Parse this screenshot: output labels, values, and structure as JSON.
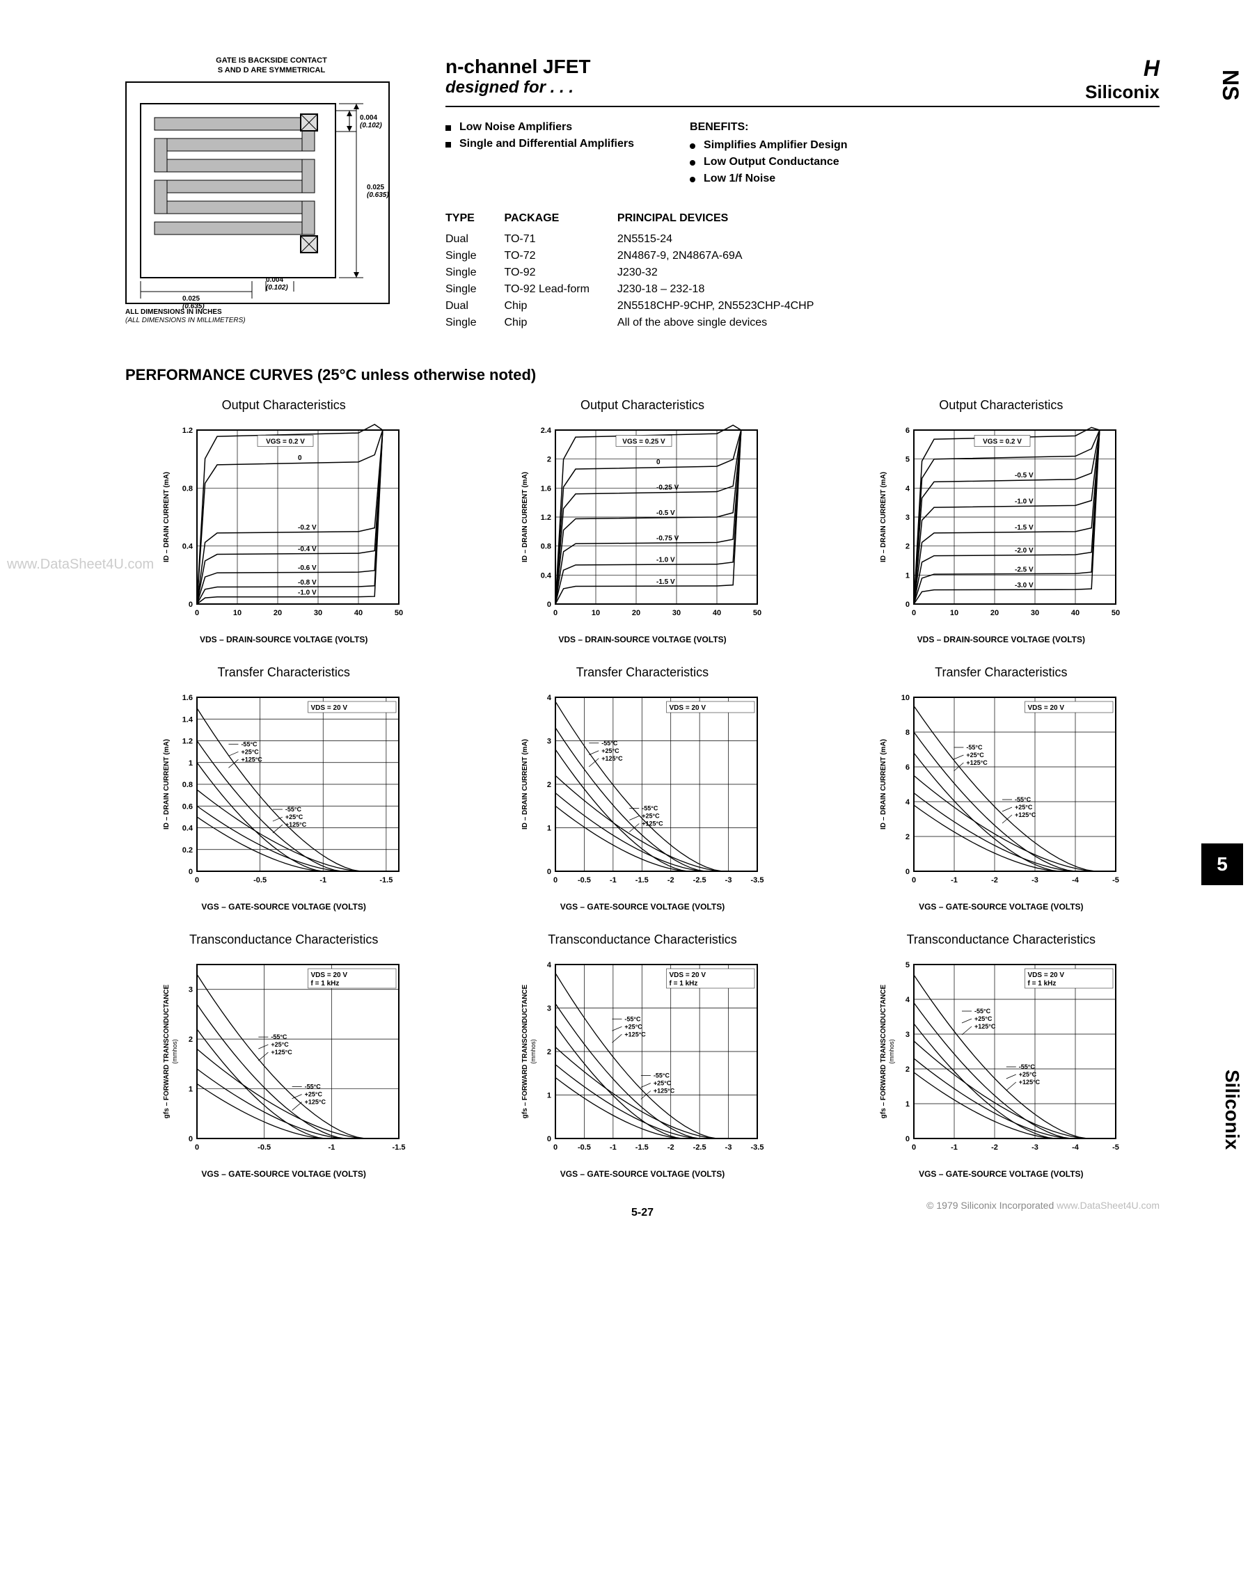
{
  "diagram": {
    "header_line1": "GATE IS BACKSIDE CONTACT",
    "header_line2": "S AND D ARE SYMMETRICAL",
    "footer_line1": "ALL DIMENSIONS IN INCHES",
    "footer_line2": "(ALL DIMENSIONS IN MILLIMETERS)",
    "dim_top": "0.004",
    "dim_top_mm": "(0.102)",
    "dim_right": "0.025",
    "dim_right_mm": "(0.635)",
    "dim_bottom_left": "0.025",
    "dim_bottom_left_mm": "(0.635)",
    "dim_bottom_right": "0.004",
    "dim_bottom_right_mm": "(0.102)"
  },
  "header": {
    "title1": "n-channel JFET",
    "title2": "designed for . . .",
    "logo_icon": "H",
    "logo_text": "Siliconix"
  },
  "features": [
    "Low Noise Amplifiers",
    "Single and Differential Amplifiers"
  ],
  "benefits_header": "BENEFITS:",
  "benefits": [
    "Simplifies Amplifier Design",
    "Low Output Conductance",
    "Low 1/f Noise"
  ],
  "type_header": "TYPE",
  "package_header": "PACKAGE",
  "devices_header": "PRINCIPAL DEVICES",
  "types": [
    "Dual",
    "Single",
    "Single",
    "Single",
    "Dual",
    "Single"
  ],
  "packages": [
    "TO-71",
    "TO-72",
    "TO-92",
    "TO-92 Lead-form",
    "Chip",
    "Chip"
  ],
  "devices": [
    "2N5515-24",
    "2N4867-9, 2N4867A-69A",
    "J230-32",
    "J230-18 – 232-18",
    "2N5518CHP-9CHP, 2N5523CHP-4CHP",
    "All of the above single devices"
  ],
  "perf_header": "PERFORMANCE CURVES (25°C unless otherwise noted)",
  "charts": {
    "output": {
      "title": "Output Characteristics",
      "xlabel": "VDS – DRAIN-SOURCE VOLTAGE (VOLTS)",
      "ylabel": "ID – DRAIN CURRENT (mA)",
      "xlim": [
        0,
        50
      ],
      "xticks": [
        0,
        10,
        20,
        30,
        40,
        50
      ],
      "line_color": "#000000",
      "grid_color": "#000000",
      "bg_color": "#ffffff",
      "sets": [
        {
          "ylim": [
            0,
            1.2
          ],
          "yticks": [
            0,
            0.4,
            0.8,
            1.2
          ],
          "vgs_label": "VGS = 0.2 V",
          "curves": [
            {
              "label": "0",
              "y": 0.98
            },
            {
              "label": "-0.2 V",
              "y": 0.5
            },
            {
              "label": "-0.4 V",
              "y": 0.35
            },
            {
              "label": "-0.6 V",
              "y": 0.22
            },
            {
              "label": "-0.8 V",
              "y": 0.12
            },
            {
              "label": "-1.0 V",
              "y": 0.05
            }
          ],
          "top_y": 1.18
        },
        {
          "ylim": [
            0,
            2.4
          ],
          "yticks": [
            0,
            0.4,
            0.8,
            1.2,
            1.6,
            2.0,
            2.4
          ],
          "vgs_label": "VGS = 0.25 V",
          "curves": [
            {
              "label": "0",
              "y": 1.9
            },
            {
              "label": "-0.25 V",
              "y": 1.55
            },
            {
              "label": "-0.5 V",
              "y": 1.2
            },
            {
              "label": "-0.75 V",
              "y": 0.85
            },
            {
              "label": "-1.0 V",
              "y": 0.55
            },
            {
              "label": "-1.5 V",
              "y": 0.25
            }
          ],
          "top_y": 2.35
        },
        {
          "ylim": [
            0,
            6
          ],
          "yticks": [
            0,
            1,
            2,
            3,
            4,
            5,
            6
          ],
          "vgs_label": "VGS = 0.2 V",
          "curves": [
            {
              "label": "-0.5 V",
              "y": 4.3
            },
            {
              "label": "-1.0 V",
              "y": 3.4
            },
            {
              "label": "-1.5 V",
              "y": 2.5
            },
            {
              "label": "-2.0 V",
              "y": 1.7
            },
            {
              "label": "-2.5 V",
              "y": 1.05
            },
            {
              "label": "-3.0 V",
              "y": 0.5
            }
          ],
          "top_y": 5.8,
          "extra_top_y": 5.1
        }
      ]
    },
    "transfer": {
      "title": "Transfer Characteristics",
      "xlabel": "VGS – GATE-SOURCE VOLTAGE (VOLTS)",
      "ylabel": "ID – DRAIN CURRENT (mA)",
      "vds_label": "VDS = 20 V",
      "temps": [
        "-55°C",
        "+25°C",
        "+125°C"
      ],
      "line_color": "#000000",
      "sets": [
        {
          "xlim": [
            0,
            -1.6
          ],
          "xticks": [
            0,
            -0.5,
            -1,
            -1.5
          ],
          "ylim": [
            0,
            1.6
          ],
          "yticks": [
            0,
            0.2,
            0.4,
            0.6,
            0.8,
            1.0,
            1.2,
            1.4,
            1.6
          ],
          "curves_high": [
            {
              "x0_y": 1.5,
              "x_zero": -1.3
            },
            {
              "x0_y": 1.2,
              "x_zero": -1.15
            },
            {
              "x0_y": 1.0,
              "x_zero": -1.0
            }
          ],
          "curves_low": [
            {
              "x0_y": 0.75,
              "x_zero": -1.3
            },
            {
              "x0_y": 0.6,
              "x_zero": -1.15
            },
            {
              "x0_y": 0.5,
              "x_zero": -1.0
            }
          ],
          "label_high_pos": [
            -0.35,
            1.15
          ],
          "label_low_pos": [
            -0.7,
            0.55
          ]
        },
        {
          "xlim": [
            0,
            -3.5
          ],
          "xticks": [
            0,
            -0.5,
            -1,
            -1.5,
            -2,
            -2.5,
            -3,
            -3.5
          ],
          "ylim": [
            0,
            4
          ],
          "yticks": [
            0,
            1,
            2,
            3,
            4
          ],
          "curves_high": [
            {
              "x0_y": 3.9,
              "x_zero": -2.9
            },
            {
              "x0_y": 3.3,
              "x_zero": -2.6
            },
            {
              "x0_y": 2.8,
              "x_zero": -2.3
            }
          ],
          "curves_low": [
            {
              "x0_y": 2.2,
              "x_zero": -2.9
            },
            {
              "x0_y": 1.8,
              "x_zero": -2.6
            },
            {
              "x0_y": 1.5,
              "x_zero": -2.3
            }
          ],
          "label_high_pos": [
            -0.8,
            2.9
          ],
          "label_low_pos": [
            -1.5,
            1.4
          ]
        },
        {
          "xlim": [
            0,
            -5
          ],
          "xticks": [
            0,
            -1,
            -2,
            -3,
            -4,
            -5
          ],
          "ylim": [
            0,
            10
          ],
          "yticks": [
            0,
            2,
            4,
            6,
            8,
            10
          ],
          "curves_high": [
            {
              "x0_y": 9.5,
              "x_zero": -4.5
            },
            {
              "x0_y": 8.0,
              "x_zero": -4.0
            },
            {
              "x0_y": 6.8,
              "x_zero": -3.6
            }
          ],
          "curves_low": [
            {
              "x0_y": 5.5,
              "x_zero": -4.5
            },
            {
              "x0_y": 4.5,
              "x_zero": -4.0
            },
            {
              "x0_y": 3.8,
              "x_zero": -3.6
            }
          ],
          "label_high_pos": [
            -1.3,
            7.0
          ],
          "label_low_pos": [
            -2.5,
            4.0
          ]
        }
      ]
    },
    "transconductance": {
      "title": "Transconductance Characteristics",
      "xlabel": "VGS – GATE-SOURCE VOLTAGE (VOLTS)",
      "ylabel": "gfs – FORWARD TRANSCONDUCTANCE",
      "ylabel_unit": "(mmhos)",
      "vds_label": "VDS = 20 V",
      "f_label": "f = 1 kHz",
      "temps": [
        "-55°C",
        "+25°C",
        "+125°C"
      ],
      "line_color": "#000000",
      "sets": [
        {
          "xlim": [
            0,
            -1.5
          ],
          "xticks": [
            0,
            -0.5,
            -1,
            -1.5
          ],
          "ylim": [
            0,
            3.5
          ],
          "yticks": [
            0,
            1,
            2,
            3
          ],
          "curves_high": [
            {
              "x0_y": 3.3,
              "x_zero": -1.25
            },
            {
              "x0_y": 2.7,
              "x_zero": -1.1
            },
            {
              "x0_y": 2.2,
              "x_zero": -0.95
            }
          ],
          "curves_low": [
            {
              "x0_y": 1.8,
              "x_zero": -1.25
            },
            {
              "x0_y": 1.4,
              "x_zero": -1.1
            },
            {
              "x0_y": 1.1,
              "x_zero": -0.95
            }
          ],
          "label_high_pos": [
            -0.55,
            2.0
          ],
          "label_low_pos": [
            -0.8,
            1.0
          ]
        },
        {
          "xlim": [
            0,
            -3.5
          ],
          "xticks": [
            0,
            -0.5,
            -1,
            -1.5,
            -2,
            -2.5,
            -3,
            -3.5
          ],
          "ylim": [
            0,
            4
          ],
          "yticks": [
            0,
            1,
            2,
            3,
            4
          ],
          "curves_high": [
            {
              "x0_y": 3.8,
              "x_zero": -2.8
            },
            {
              "x0_y": 3.1,
              "x_zero": -2.5
            },
            {
              "x0_y": 2.6,
              "x_zero": -2.2
            }
          ],
          "curves_low": [
            {
              "x0_y": 2.1,
              "x_zero": -2.8
            },
            {
              "x0_y": 1.7,
              "x_zero": -2.5
            },
            {
              "x0_y": 1.4,
              "x_zero": -2.2
            }
          ],
          "label_high_pos": [
            -1.2,
            2.7
          ],
          "label_low_pos": [
            -1.7,
            1.4
          ]
        },
        {
          "xlim": [
            0,
            -5
          ],
          "xticks": [
            0,
            -1,
            -2,
            -3,
            -4,
            -5
          ],
          "ylim": [
            0,
            5
          ],
          "yticks": [
            0,
            1,
            2,
            3,
            4,
            5
          ],
          "curves_high": [
            {
              "x0_y": 4.7,
              "x_zero": -4.3
            },
            {
              "x0_y": 3.9,
              "x_zero": -3.9
            },
            {
              "x0_y": 3.3,
              "x_zero": -3.5
            }
          ],
          "curves_low": [
            {
              "x0_y": 2.8,
              "x_zero": -4.3
            },
            {
              "x0_y": 2.3,
              "x_zero": -3.9
            },
            {
              "x0_y": 1.9,
              "x_zero": -3.5
            }
          ],
          "label_high_pos": [
            -1.5,
            3.6
          ],
          "label_low_pos": [
            -2.6,
            2.0
          ]
        }
      ]
    }
  },
  "side_tab_top": "NS",
  "side_tab_bottom": "Siliconix",
  "page_box_num": "5",
  "watermark": "www.DataSheet4U.com",
  "footer_copyright": "© 1979 Siliconix Incorporated",
  "footer_watermark": "www.DataSheet4U.com",
  "footer_pagenum": "5-27"
}
